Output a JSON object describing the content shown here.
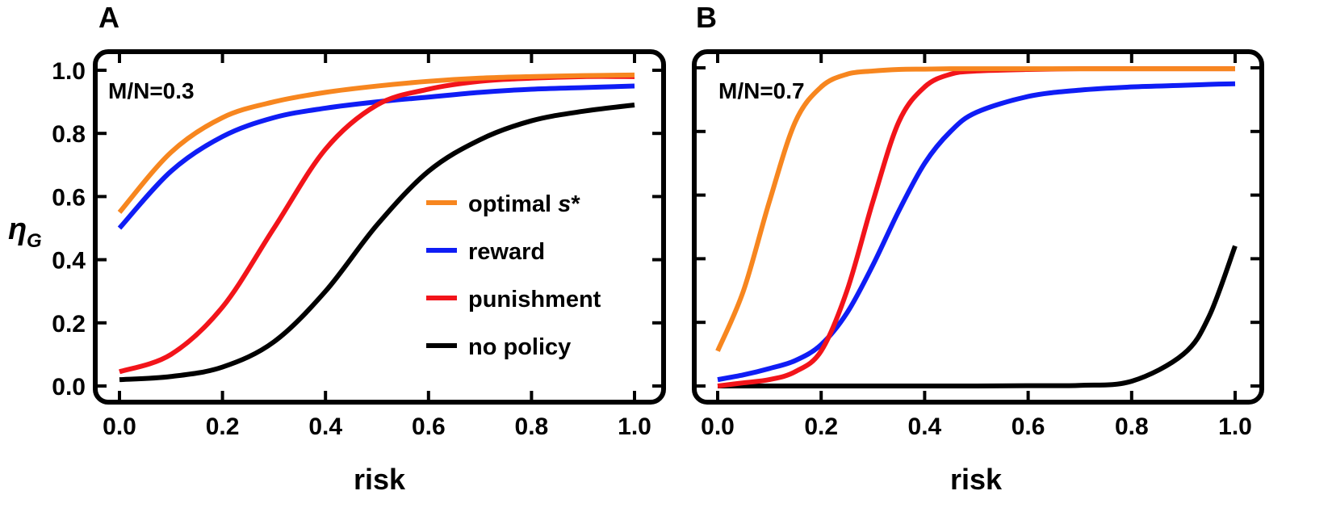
{
  "colors": {
    "optimal": "#f7861f",
    "reward": "#0f1df5",
    "punishment": "#f2141a",
    "no_policy": "#000000"
  },
  "ylabel": {
    "main": "η",
    "sub": "G"
  },
  "legend": [
    "optimal s*",
    "reward",
    "punishment",
    "no policy"
  ],
  "chart_data": [
    {
      "type": "line",
      "panel": "A",
      "annotation": "M/N=0.3",
      "xlabel": "risk",
      "ylabel": "ηG",
      "xlim": [
        0,
        1
      ],
      "ylim": [
        0,
        1
      ],
      "xticks": [
        "0.0",
        "0.2",
        "0.4",
        "0.6",
        "0.8",
        "1.0"
      ],
      "yticks": [
        "0.0",
        "0.2",
        "0.4",
        "0.6",
        "0.8",
        "1.0"
      ],
      "x": [
        0.0,
        0.1,
        0.2,
        0.3,
        0.4,
        0.5,
        0.6,
        0.7,
        0.8,
        0.9,
        1.0
      ],
      "series": [
        {
          "name": "optimal s*",
          "color": "optimal",
          "values": [
            0.55,
            0.74,
            0.85,
            0.9,
            0.93,
            0.95,
            0.965,
            0.975,
            0.98,
            0.983,
            0.985
          ]
        },
        {
          "name": "reward",
          "color": "reward",
          "values": [
            0.5,
            0.68,
            0.79,
            0.85,
            0.88,
            0.9,
            0.915,
            0.93,
            0.94,
            0.945,
            0.95
          ]
        },
        {
          "name": "punishment",
          "color": "punishment",
          "values": [
            0.045,
            0.1,
            0.25,
            0.5,
            0.75,
            0.89,
            0.94,
            0.965,
            0.975,
            0.98,
            0.98
          ]
        },
        {
          "name": "no policy",
          "color": "no_policy",
          "values": [
            0.02,
            0.03,
            0.06,
            0.14,
            0.3,
            0.51,
            0.68,
            0.78,
            0.84,
            0.87,
            0.89
          ]
        }
      ]
    },
    {
      "type": "line",
      "panel": "B",
      "annotation": "M/N=0.7",
      "xlabel": "risk",
      "xlim": [
        0,
        1
      ],
      "ylim": [
        0,
        1
      ],
      "xticks": [
        "0.0",
        "0.2",
        "0.4",
        "0.6",
        "0.8",
        "1.0"
      ],
      "x": [
        0.0,
        0.05,
        0.1,
        0.15,
        0.2,
        0.25,
        0.3,
        0.35,
        0.4,
        0.45,
        0.5,
        0.6,
        0.7,
        0.8,
        0.9,
        0.95,
        1.0
      ],
      "series": [
        {
          "name": "optimal s*",
          "color": "optimal",
          "values": [
            0.11,
            0.3,
            0.58,
            0.83,
            0.94,
            0.98,
            0.99,
            0.995,
            0.996,
            0.997,
            0.997,
            0.997,
            0.997,
            0.997,
            0.997,
            0.997,
            0.997
          ]
        },
        {
          "name": "reward",
          "color": "reward",
          "values": [
            0.02,
            0.035,
            0.055,
            0.08,
            0.13,
            0.23,
            0.38,
            0.55,
            0.7,
            0.8,
            0.86,
            0.91,
            0.93,
            0.94,
            0.945,
            0.948,
            0.95
          ]
        },
        {
          "name": "punishment",
          "color": "punishment",
          "values": [
            0.0,
            0.01,
            0.02,
            0.045,
            0.11,
            0.3,
            0.58,
            0.83,
            0.94,
            0.98,
            0.99,
            0.995,
            0.997,
            0.997,
            0.997,
            0.997,
            0.997
          ]
        },
        {
          "name": "no policy",
          "color": "no_policy",
          "values": [
            0.0,
            0.0,
            0.0,
            0.0,
            0.0,
            0.0,
            0.0,
            0.0,
            0.0,
            0.0,
            0.0,
            0.001,
            0.002,
            0.015,
            0.1,
            0.22,
            0.44
          ]
        }
      ]
    }
  ]
}
